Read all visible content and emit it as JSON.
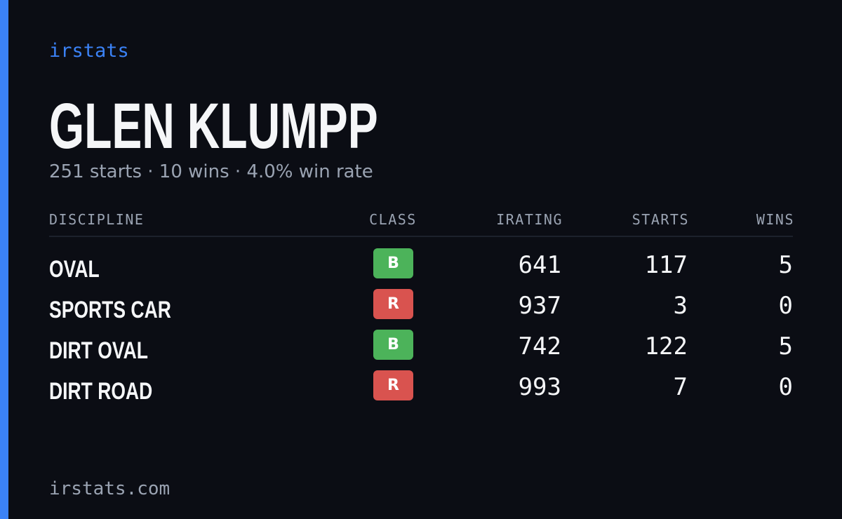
{
  "brand": "irstats",
  "driver": {
    "name": "GLEN KLUMPP",
    "summary": "251 starts · 10 wins · 4.0% win rate"
  },
  "table": {
    "headers": [
      "DISCIPLINE",
      "CLASS",
      "IRATING",
      "STARTS",
      "WINS"
    ],
    "rows": [
      [
        "OVAL",
        "B",
        641,
        117,
        5
      ],
      [
        "SPORTS CAR",
        "R",
        937,
        3,
        0
      ],
      [
        "DIRT OVAL",
        "B",
        742,
        122,
        5
      ],
      [
        "DIRT ROAD",
        "R",
        993,
        7,
        0
      ]
    ],
    "class_colors": {
      "B": "#4cb35a",
      "R": "#d9534f"
    }
  },
  "footer": "irstats.com"
}
